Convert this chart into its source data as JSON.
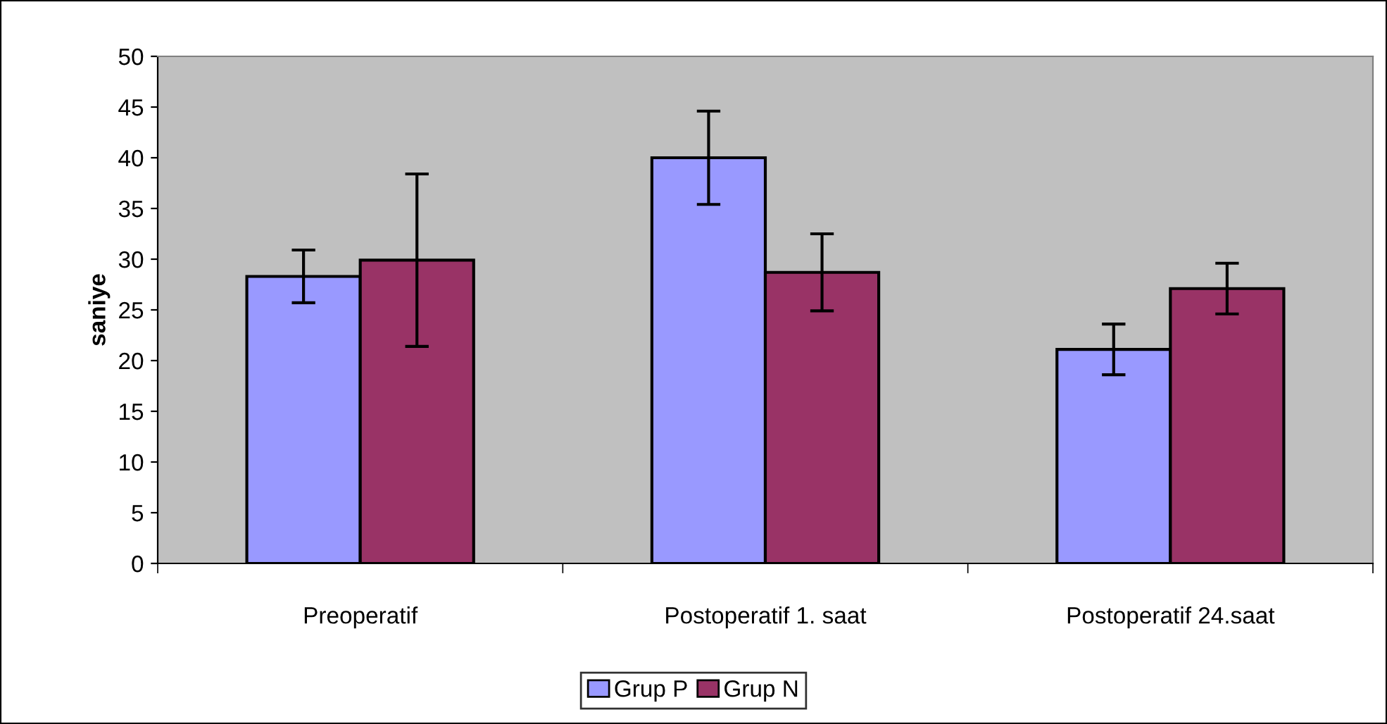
{
  "chart_data": {
    "type": "bar",
    "ylabel": "saniye",
    "categories": [
      "Preoperatif",
      "Postoperatif 1. saat",
      "Postoperatif 24.saat"
    ],
    "series": [
      {
        "name": "Grup P",
        "color": "#9999ff",
        "values": [
          28.3,
          40.0,
          21.1
        ],
        "errors": [
          2.6,
          4.6,
          2.5
        ]
      },
      {
        "name": "Grup N",
        "color": "#993366",
        "values": [
          29.9,
          28.7,
          27.1
        ],
        "errors": [
          8.5,
          3.8,
          2.5
        ]
      }
    ],
    "ylim": [
      0,
      50
    ],
    "yticks": [
      0,
      5,
      10,
      15,
      20,
      25,
      30,
      35,
      40,
      45,
      50
    ],
    "grid": false,
    "legend": "bottom"
  }
}
